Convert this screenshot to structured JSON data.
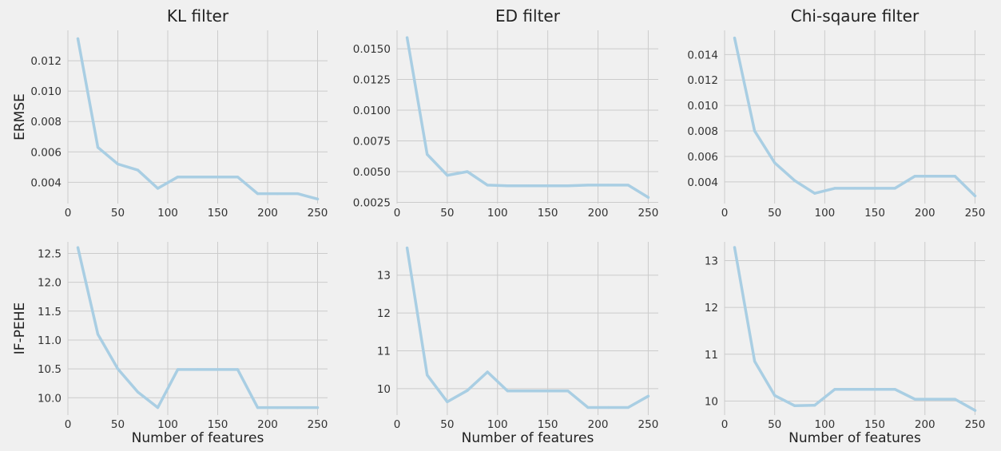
{
  "figure": {
    "background": "#f0f0f0",
    "grid_color": "#cbcbcb",
    "line_color": "#a9cee3"
  },
  "chart_data": [
    {
      "type": "line",
      "row": 0,
      "col": 0,
      "title": "KL filter",
      "xlabel": "",
      "ylabel": "ERMSE",
      "x": [
        10,
        30,
        50,
        70,
        90,
        110,
        130,
        150,
        170,
        190,
        210,
        230,
        250
      ],
      "series": [
        {
          "values": [
            0.01345,
            0.0063,
            0.0052,
            0.0048,
            0.0036,
            0.00435,
            0.00435,
            0.00435,
            0.00435,
            0.00325,
            0.00325,
            0.00325,
            0.0029
          ]
        }
      ],
      "xlim": [
        0,
        260
      ],
      "ylim": [
        0.0026,
        0.014
      ],
      "xticks": [
        0,
        50,
        100,
        150,
        200,
        250
      ],
      "yticks": [
        0.004,
        0.006,
        0.008,
        0.01,
        0.012
      ],
      "yticklabels": [
        "0.004",
        "0.006",
        "0.008",
        "0.010",
        "0.012"
      ],
      "grid": true
    },
    {
      "type": "line",
      "row": 0,
      "col": 1,
      "title": "ED filter",
      "xlabel": "",
      "ylabel": "",
      "x": [
        10,
        30,
        50,
        70,
        90,
        110,
        130,
        150,
        170,
        190,
        210,
        230,
        250
      ],
      "series": [
        {
          "values": [
            0.0159,
            0.0064,
            0.0047,
            0.005,
            0.0039,
            0.00385,
            0.00385,
            0.00385,
            0.00385,
            0.0039,
            0.0039,
            0.0039,
            0.0029
          ]
        }
      ],
      "xlim": [
        0,
        260
      ],
      "ylim": [
        0.0024,
        0.0165
      ],
      "xticks": [
        0,
        50,
        100,
        150,
        200,
        250
      ],
      "yticks": [
        0.0025,
        0.005,
        0.0075,
        0.01,
        0.0125,
        0.015
      ],
      "yticklabels": [
        "0.0025",
        "0.0050",
        "0.0075",
        "0.0100",
        "0.0125",
        "0.0150"
      ],
      "grid": true
    },
    {
      "type": "line",
      "row": 0,
      "col": 2,
      "title": "Chi-sqaure filter",
      "xlabel": "",
      "ylabel": "",
      "x": [
        10,
        30,
        50,
        70,
        90,
        110,
        130,
        150,
        170,
        190,
        210,
        230,
        250
      ],
      "series": [
        {
          "values": [
            0.0153,
            0.008,
            0.0055,
            0.0041,
            0.0031,
            0.0035,
            0.0035,
            0.0035,
            0.0035,
            0.00445,
            0.00445,
            0.00445,
            0.0029
          ]
        }
      ],
      "xlim": [
        0,
        260
      ],
      "ylim": [
        0.0023,
        0.0159
      ],
      "xticks": [
        0,
        50,
        100,
        150,
        200,
        250
      ],
      "yticks": [
        0.004,
        0.006,
        0.008,
        0.01,
        0.012,
        0.014
      ],
      "yticklabels": [
        "0.004",
        "0.006",
        "0.008",
        "0.010",
        "0.012",
        "0.014"
      ],
      "grid": true
    },
    {
      "type": "line",
      "row": 1,
      "col": 0,
      "title": "",
      "xlabel": "Number of features",
      "ylabel": "IF-PEHE",
      "x": [
        10,
        30,
        50,
        70,
        90,
        110,
        130,
        150,
        170,
        190,
        210,
        230,
        250
      ],
      "series": [
        {
          "values": [
            12.6,
            11.1,
            10.5,
            10.1,
            9.83,
            10.49,
            10.49,
            10.49,
            10.49,
            9.83,
            9.83,
            9.83,
            9.83
          ]
        }
      ],
      "xlim": [
        0,
        260
      ],
      "ylim": [
        9.7,
        12.7
      ],
      "xticks": [
        0,
        50,
        100,
        150,
        200,
        250
      ],
      "yticks": [
        10,
        10.5,
        11,
        11.5,
        12,
        12.5
      ],
      "yticklabels": [
        "10.0",
        "10.5",
        "11.0",
        "11.5",
        "12.0",
        "12.5"
      ],
      "grid": true
    },
    {
      "type": "line",
      "row": 1,
      "col": 1,
      "title": "",
      "xlabel": "Number of features",
      "ylabel": "",
      "x": [
        10,
        30,
        50,
        70,
        90,
        110,
        130,
        150,
        170,
        190,
        210,
        230,
        250
      ],
      "series": [
        {
          "values": [
            13.72,
            10.36,
            9.65,
            9.95,
            10.44,
            9.94,
            9.94,
            9.94,
            9.94,
            9.5,
            9.5,
            9.5,
            9.8
          ]
        }
      ],
      "xlim": [
        0,
        260
      ],
      "ylim": [
        9.3,
        13.88
      ],
      "xticks": [
        0,
        50,
        100,
        150,
        200,
        250
      ],
      "yticks": [
        10,
        11,
        12,
        13
      ],
      "yticklabels": [
        "10",
        "11",
        "12",
        "13"
      ],
      "grid": true
    },
    {
      "type": "line",
      "row": 1,
      "col": 2,
      "title": "",
      "xlabel": "Number of features",
      "ylabel": "",
      "x": [
        10,
        30,
        50,
        70,
        90,
        110,
        130,
        150,
        170,
        190,
        210,
        230,
        250
      ],
      "series": [
        {
          "values": [
            13.28,
            10.85,
            10.12,
            9.9,
            9.91,
            10.25,
            10.25,
            10.25,
            10.25,
            10.04,
            10.04,
            10.04,
            9.8
          ]
        }
      ],
      "xlim": [
        0,
        260
      ],
      "ylim": [
        9.7,
        13.4
      ],
      "xticks": [
        0,
        50,
        100,
        150,
        200,
        250
      ],
      "yticks": [
        10,
        11,
        12,
        13
      ],
      "yticklabels": [
        "10",
        "11",
        "12",
        "13"
      ],
      "grid": true
    }
  ]
}
